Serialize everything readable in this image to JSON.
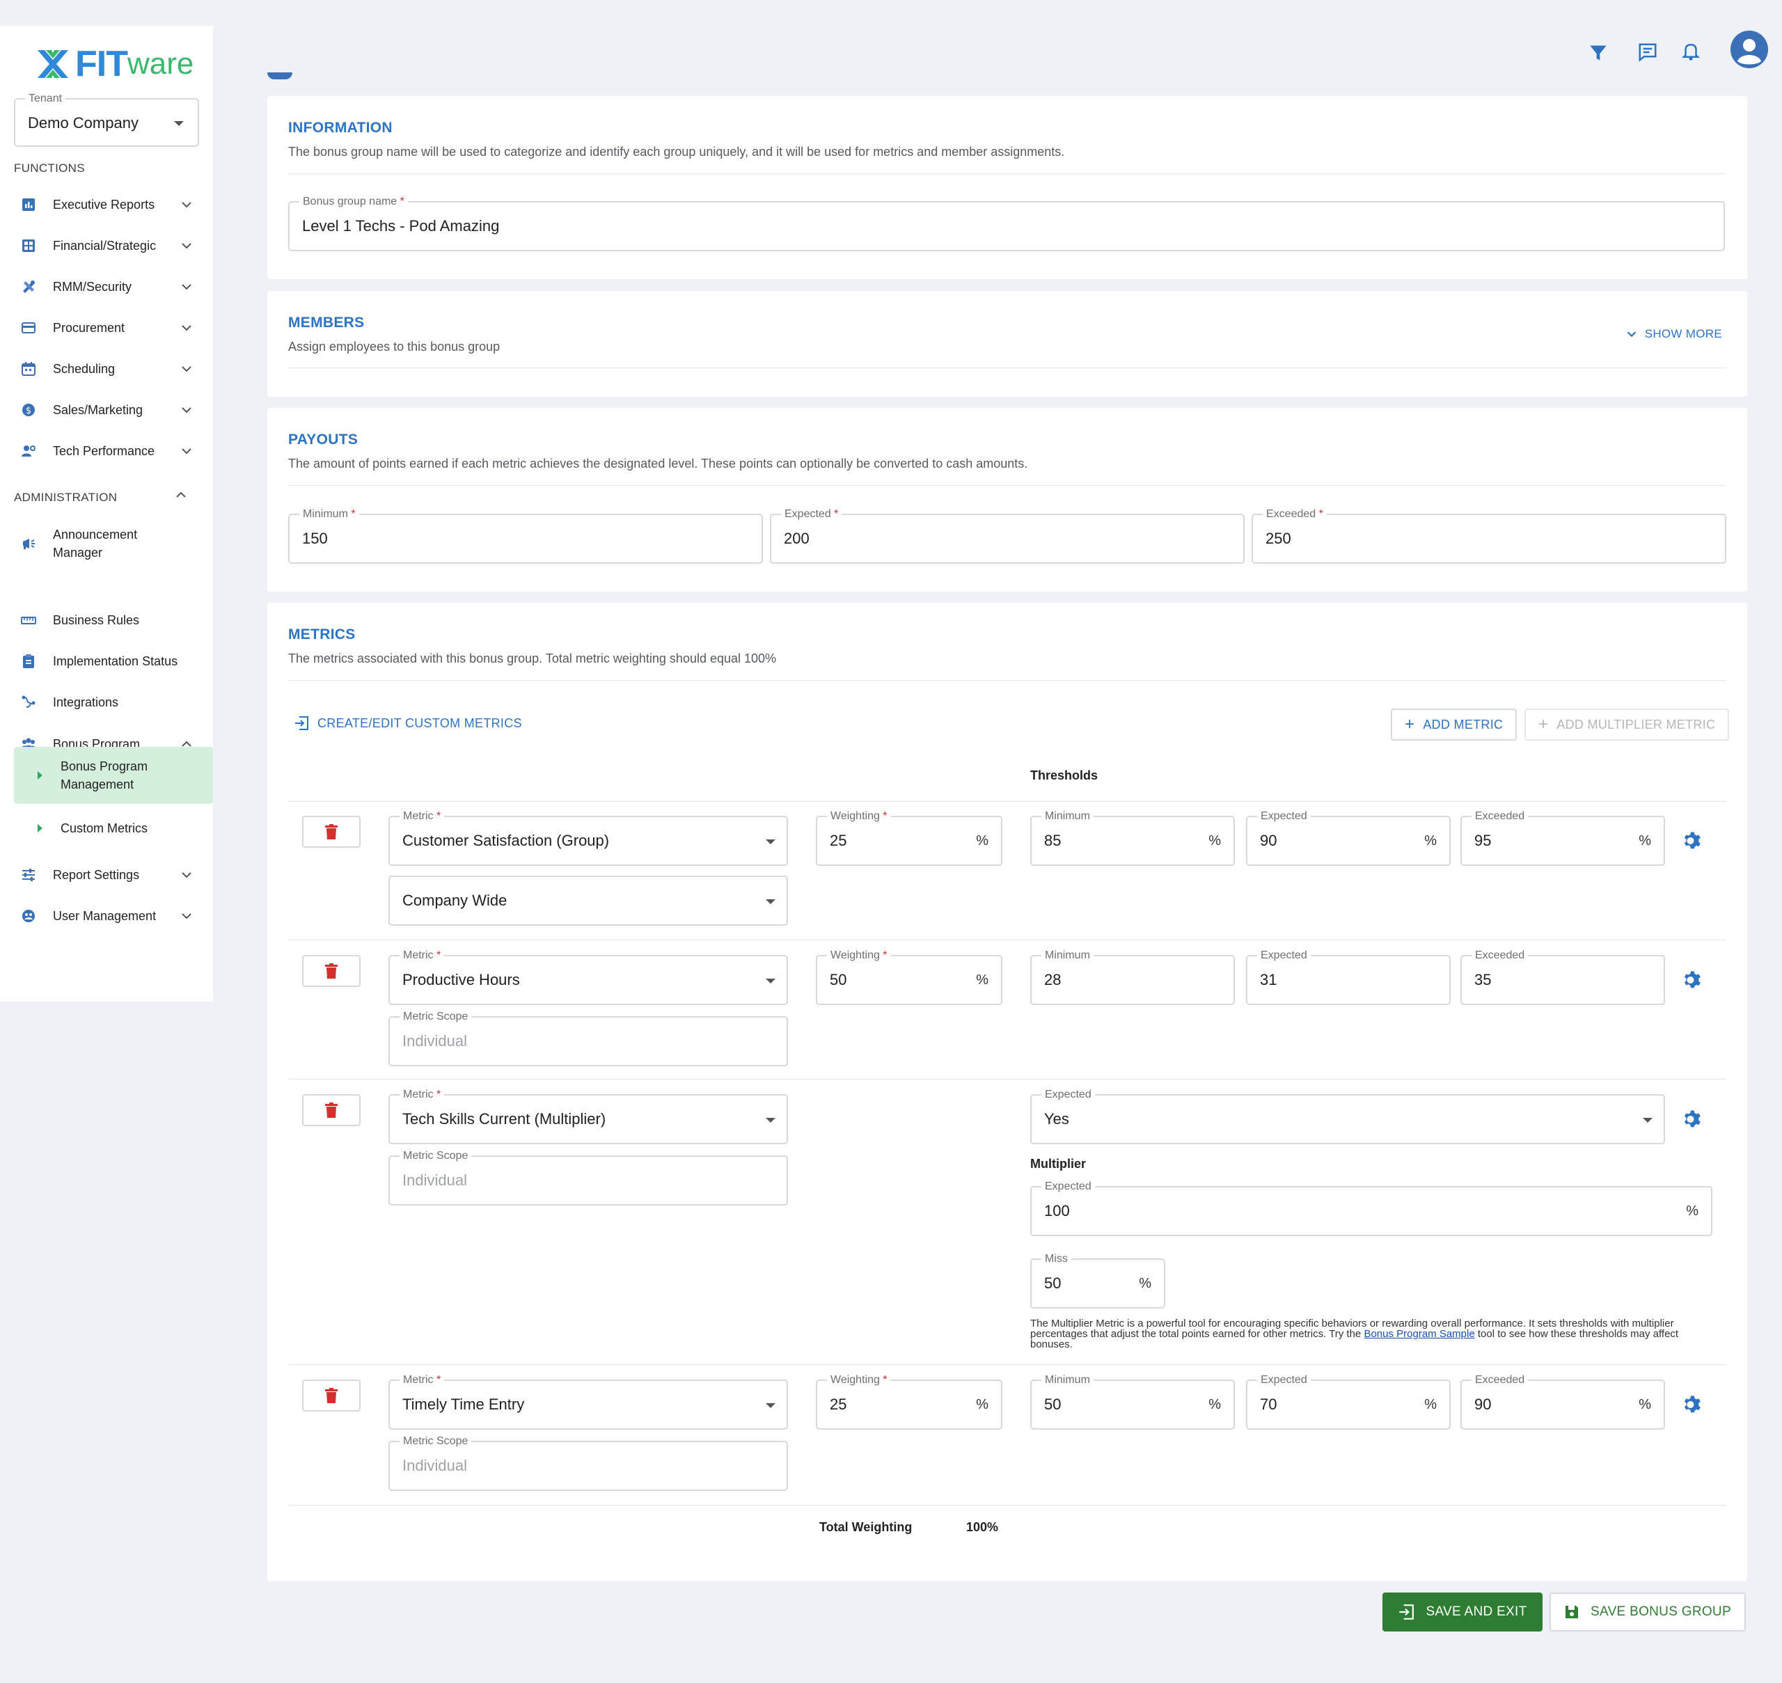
{
  "brand": {
    "name_a": "FIT",
    "name_b": "ware"
  },
  "tenant": {
    "label": "Tenant",
    "value": "Demo Company"
  },
  "sidebar": {
    "functions_heading": "FUNCTIONS",
    "functions": [
      {
        "label": "Executive Reports",
        "icon": "bar-chart-icon"
      },
      {
        "label": "Financial/Strategic",
        "icon": "grid-icon"
      },
      {
        "label": "RMM/Security",
        "icon": "tools-icon"
      },
      {
        "label": "Procurement",
        "icon": "card-icon"
      },
      {
        "label": "Scheduling",
        "icon": "calendar-icon"
      },
      {
        "label": "Sales/Marketing",
        "icon": "dollar-icon"
      },
      {
        "label": "Tech Performance",
        "icon": "person-gear-icon"
      }
    ],
    "admin_heading": "ADMINISTRATION",
    "admin": [
      {
        "label": "Announcement Manager",
        "icon": "megaphone-icon"
      },
      {
        "label": "Business Rules",
        "icon": "ruler-icon"
      },
      {
        "label": "Implementation Status",
        "icon": "clipboard-icon"
      },
      {
        "label": "Integrations",
        "icon": "integration-icon"
      },
      {
        "label": "Bonus Program",
        "icon": "people-icon"
      }
    ],
    "bonus_sub": [
      "Bonus Program Management",
      "Custom Metrics"
    ],
    "tail": [
      {
        "label": "Report Settings",
        "icon": "sliders-icon"
      },
      {
        "label": "User Management",
        "icon": "user-circle-icon"
      }
    ]
  },
  "information": {
    "title": "INFORMATION",
    "desc": "The bonus group name will be used to categorize and identify each group uniquely, and it will be used for metrics and member assignments.",
    "name_label": "Bonus group name",
    "name_value": "Level 1 Techs - Pod Amazing"
  },
  "members": {
    "title": "MEMBERS",
    "desc": "Assign employees to this bonus group",
    "show_more": "SHOW MORE"
  },
  "payouts": {
    "title": "PAYOUTS",
    "desc": "The amount of points earned if each metric achieves the designated level. These points can optionally be converted to cash amounts.",
    "minimum_label": "Minimum",
    "minimum": "150",
    "expected_label": "Expected",
    "expected": "200",
    "exceeded_label": "Exceeded",
    "exceeded": "250"
  },
  "metrics": {
    "title": "METRICS",
    "desc": "The metrics associated with this bonus group. Total metric weighting should equal 100%",
    "custom_link": "CREATE/EDIT CUSTOM METRICS",
    "add_metric": "ADD METRIC",
    "add_multiplier": "ADD MULTIPLIER METRIC",
    "thresholds": "Thresholds",
    "labels": {
      "metric": "Metric",
      "weighting": "Weighting",
      "minimum": "Minimum",
      "expected": "Expected",
      "exceeded": "Exceeded",
      "scope": "Metric Scope",
      "miss": "Miss"
    },
    "pct": "%",
    "rows": [
      {
        "metric": "Customer Satisfaction (Group)",
        "scope": "Company Wide",
        "weighting": "25",
        "minimum": "85",
        "expected": "90",
        "exceeded": "95"
      },
      {
        "metric": "Productive Hours",
        "scope": "Individual",
        "weighting": "50",
        "minimum": "28",
        "expected": "31",
        "exceeded": "35"
      },
      {
        "metric": "Tech Skills Current (Multiplier)",
        "scope": "Individual",
        "expected_value": "Yes",
        "multiplier_heading": "Multiplier",
        "multiplier_expected": "100",
        "multiplier_miss": "50",
        "note_a": "The Multiplier Metric is a powerful tool for encouraging specific behaviors or rewarding overall performance. It sets thresholds with multiplier percentages that adjust the total points earned for other metrics. Try the ",
        "note_link": "Bonus Program Sample",
        "note_b": " tool to see how these thresholds may affect bonuses."
      },
      {
        "metric": "Timely Time Entry",
        "scope": "Individual",
        "weighting": "25",
        "minimum": "50",
        "expected": "70",
        "exceeded": "90"
      }
    ],
    "total_label": "Total Weighting",
    "total_value": "100%"
  },
  "actions": {
    "save_exit": "SAVE AND EXIT",
    "save_group": "SAVE BONUS GROUP"
  },
  "colors": {
    "accent_blue": "#2c73c3",
    "green": "#2e7d32",
    "delete_red": "#d32f2f",
    "active_bg": "#d4f0dd"
  }
}
